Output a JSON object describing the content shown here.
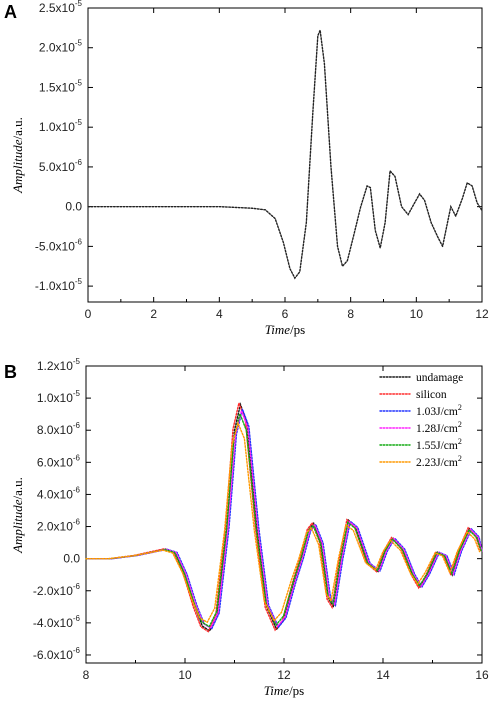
{
  "chart_data": [
    {
      "panel": "A",
      "type": "line",
      "xlabel_italic": "Time",
      "xlabel_unit": "/ps",
      "ylabel_italic": "Amplitude",
      "ylabel_unit": "/a.u.",
      "xlim": [
        0,
        12
      ],
      "ylim": [
        -1.2e-05,
        2.5e-05
      ],
      "xticks": [
        {
          "v": 0,
          "label": "0"
        },
        {
          "v": 2,
          "label": "2"
        },
        {
          "v": 4,
          "label": "4"
        },
        {
          "v": 6,
          "label": "6"
        },
        {
          "v": 8,
          "label": "8"
        },
        {
          "v": 10,
          "label": "10"
        },
        {
          "v": 12,
          "label": "12"
        }
      ],
      "yticks": [
        {
          "v": 2.5e-05,
          "mant": "2.5x10",
          "exp": "-5"
        },
        {
          "v": 2e-05,
          "mant": "2.0x10",
          "exp": "-5"
        },
        {
          "v": 1.5e-05,
          "mant": "1.5x10",
          "exp": "-5"
        },
        {
          "v": 1e-05,
          "mant": "1.0x10",
          "exp": "-5"
        },
        {
          "v": 5e-06,
          "mant": "5.0x10",
          "exp": "-6"
        },
        {
          "v": 0,
          "mant": "0.0",
          "exp": ""
        },
        {
          "v": -5e-06,
          "mant": "-5.0x10",
          "exp": "-6"
        },
        {
          "v": -1e-05,
          "mant": "-1.0x10",
          "exp": "-5"
        }
      ],
      "series": [
        {
          "color": "#222222",
          "points": [
            [
              0,
              0
            ],
            [
              1,
              0
            ],
            [
              2,
              0
            ],
            [
              3,
              0
            ],
            [
              4,
              0
            ],
            [
              4.5,
              -1e-07
            ],
            [
              5,
              -2e-07
            ],
            [
              5.4,
              -4e-07
            ],
            [
              5.7,
              -1.5e-06
            ],
            [
              5.95,
              -4.5e-06
            ],
            [
              6.15,
              -7.8e-06
            ],
            [
              6.3,
              -9e-06
            ],
            [
              6.45,
              -8.2e-06
            ],
            [
              6.65,
              -2e-06
            ],
            [
              6.85,
              1.2e-05
            ],
            [
              7.0,
              2.15e-05
            ],
            [
              7.07,
              2.22e-05
            ],
            [
              7.2,
              1.8e-05
            ],
            [
              7.4,
              5e-06
            ],
            [
              7.6,
              -5e-06
            ],
            [
              7.75,
              -7.5e-06
            ],
            [
              7.9,
              -6.8e-06
            ],
            [
              8.1,
              -3.5e-06
            ],
            [
              8.3,
              -1e-07
            ],
            [
              8.5,
              2.6e-06
            ],
            [
              8.6,
              2.4e-06
            ],
            [
              8.75,
              -3e-06
            ],
            [
              8.9,
              -5.2e-06
            ],
            [
              9.05,
              -2e-06
            ],
            [
              9.2,
              4.5e-06
            ],
            [
              9.35,
              3.8e-06
            ],
            [
              9.55,
              0
            ],
            [
              9.75,
              -1e-06
            ],
            [
              9.95,
              5e-07
            ],
            [
              10.1,
              1.6e-06
            ],
            [
              10.25,
              8e-07
            ],
            [
              10.45,
              -2e-06
            ],
            [
              10.65,
              -3.8e-06
            ],
            [
              10.8,
              -5e-06
            ],
            [
              10.95,
              -2e-06
            ],
            [
              11.05,
              0
            ],
            [
              11.2,
              -1.2e-06
            ],
            [
              11.4,
              1e-06
            ],
            [
              11.55,
              3e-06
            ],
            [
              11.7,
              2.6e-06
            ],
            [
              11.85,
              5e-07
            ],
            [
              12,
              -5e-07
            ]
          ]
        }
      ]
    },
    {
      "panel": "B",
      "type": "line",
      "xlabel_italic": "Time",
      "xlabel_unit": "/ps",
      "ylabel_italic": "Amplitude",
      "ylabel_unit": "/a.u.",
      "xlim": [
        8,
        16
      ],
      "ylim": [
        -6.5e-06,
        1.2e-05
      ],
      "xticks": [
        {
          "v": 8,
          "label": "8"
        },
        {
          "v": 10,
          "label": "10"
        },
        {
          "v": 12,
          "label": "12"
        },
        {
          "v": 14,
          "label": "14"
        },
        {
          "v": 16,
          "label": "16"
        }
      ],
      "yticks": [
        {
          "v": 1.2e-05,
          "mant": "1.2x10",
          "exp": "-5"
        },
        {
          "v": 1e-05,
          "mant": "1.0x10",
          "exp": "-5"
        },
        {
          "v": 8e-06,
          "mant": "8.0x10",
          "exp": "-6"
        },
        {
          "v": 6e-06,
          "mant": "6.0x10",
          "exp": "-6"
        },
        {
          "v": 4e-06,
          "mant": "4.0x10",
          "exp": "-6"
        },
        {
          "v": 2e-06,
          "mant": "2.0x10",
          "exp": "-6"
        },
        {
          "v": 0,
          "mant": "0.0",
          "exp": ""
        },
        {
          "v": -2e-06,
          "mant": "-2.0x10",
          "exp": "-6"
        },
        {
          "v": -4e-06,
          "mant": "-4.0x10",
          "exp": "-6"
        },
        {
          "v": -6e-06,
          "mant": "-6.0x10",
          "exp": "-6"
        }
      ],
      "legend_position": "top-right",
      "base_points": [
        [
          8,
          0
        ],
        [
          8.5,
          0
        ],
        [
          9,
          2e-07
        ],
        [
          9.3,
          4e-07
        ],
        [
          9.6,
          6e-07
        ],
        [
          9.8,
          4e-07
        ],
        [
          10.0,
          -1e-06
        ],
        [
          10.2,
          -3e-06
        ],
        [
          10.35,
          -4.2e-06
        ],
        [
          10.5,
          -4.5e-06
        ],
        [
          10.65,
          -3.5e-06
        ],
        [
          10.85,
          2e-06
        ],
        [
          11.0,
          8e-06
        ],
        [
          11.12,
          9.6e-06
        ],
        [
          11.25,
          8.5e-06
        ],
        [
          11.45,
          2e-06
        ],
        [
          11.65,
          -3e-06
        ],
        [
          11.85,
          -4.4e-06
        ],
        [
          12.0,
          -3.8e-06
        ],
        [
          12.2,
          -1.5e-06
        ],
        [
          12.35,
          0
        ],
        [
          12.5,
          1.8e-06
        ],
        [
          12.6,
          2.2e-06
        ],
        [
          12.75,
          1e-06
        ],
        [
          12.9,
          -2.5e-06
        ],
        [
          13.0,
          -3e-06
        ],
        [
          13.15,
          0
        ],
        [
          13.3,
          2.4e-06
        ],
        [
          13.45,
          2e-06
        ],
        [
          13.7,
          -3e-07
        ],
        [
          13.9,
          -8e-07
        ],
        [
          14.05,
          5e-07
        ],
        [
          14.2,
          1.3e-06
        ],
        [
          14.4,
          6e-07
        ],
        [
          14.6,
          -1e-06
        ],
        [
          14.75,
          -1.8e-06
        ],
        [
          14.9,
          -1e-06
        ],
        [
          15.1,
          4e-07
        ],
        [
          15.25,
          2e-07
        ],
        [
          15.4,
          -1e-06
        ],
        [
          15.55,
          5e-07
        ],
        [
          15.75,
          1.9e-06
        ],
        [
          15.9,
          1.4e-06
        ],
        [
          16.0,
          5e-07
        ]
      ],
      "series": [
        {
          "name": "undamage",
          "color": "#1a1a1a",
          "shift": 0.0,
          "scale": 1.0
        },
        {
          "name": "silicon",
          "color": "#ff2a2a",
          "shift": -0.03,
          "scale": 1.01
        },
        {
          "name": "1.03J/cm",
          "sup": "2",
          "color": "#2233ff",
          "shift": 0.04,
          "scale": 0.97
        },
        {
          "name": "1.28J/cm",
          "sup": "2",
          "color": "#ff22ff",
          "shift": 0.02,
          "scale": 0.96
        },
        {
          "name": "1.55J/cm",
          "sup": "2",
          "color": "#11aa11",
          "shift": -0.01,
          "scale": 0.94
        },
        {
          "name": "2.23J/cm",
          "sup": "2",
          "color": "#ff9900",
          "shift": -0.05,
          "scale": 0.88
        }
      ]
    }
  ]
}
